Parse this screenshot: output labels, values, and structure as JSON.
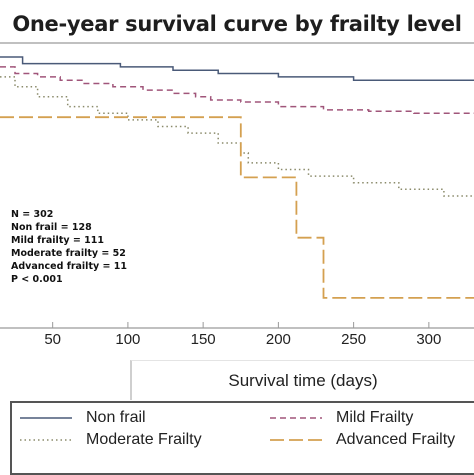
{
  "chart_data": {
    "type": "line",
    "title": "One-year survival curve by frailty level",
    "xlabel": "Survival time (days)",
    "ylabel": "",
    "xlim": [
      15,
      330
    ],
    "ylim": [
      0.595,
      1.0
    ],
    "x_ticks": [
      50,
      100,
      150,
      200,
      250,
      300
    ],
    "grid": false,
    "legend_position": "bottom",
    "annotations": [
      "N = 302",
      "Non frail = 128",
      "Mild frailty = 111",
      "Moderate frailty = 52",
      "Advanced frailty = 11",
      "P < 0.001"
    ],
    "series": [
      {
        "name": "Non frail",
        "color": "#4a5a78",
        "style": "solid",
        "x": [
          15,
          30,
          95,
          130,
          160,
          200,
          250,
          330
        ],
        "y": [
          1.0,
          0.99,
          0.985,
          0.98,
          0.975,
          0.97,
          0.965,
          0.965
        ]
      },
      {
        "name": "Mild Frailty",
        "color": "#a0557a",
        "style": "dashed",
        "x": [
          15,
          25,
          40,
          55,
          70,
          90,
          110,
          130,
          145,
          155,
          175,
          200,
          230,
          260,
          290,
          330
        ],
        "y": [
          0.985,
          0.975,
          0.97,
          0.965,
          0.96,
          0.955,
          0.95,
          0.945,
          0.94,
          0.935,
          0.932,
          0.925,
          0.92,
          0.918,
          0.915,
          0.915
        ]
      },
      {
        "name": "Moderate Frailty",
        "color": "#8a8a6a",
        "style": "dotted",
        "x": [
          15,
          25,
          40,
          60,
          80,
          100,
          120,
          140,
          160,
          175,
          180,
          200,
          220,
          250,
          280,
          310,
          330
        ],
        "y": [
          0.97,
          0.955,
          0.94,
          0.925,
          0.915,
          0.905,
          0.895,
          0.885,
          0.87,
          0.855,
          0.84,
          0.83,
          0.82,
          0.81,
          0.8,
          0.79,
          0.79
        ]
      },
      {
        "name": "Advanced Frailty",
        "color": "#d4a050",
        "style": "longdash",
        "x": [
          15,
          175,
          175,
          212,
          212,
          230,
          230,
          330
        ],
        "y": [
          0.909,
          0.909,
          0.818,
          0.818,
          0.727,
          0.727,
          0.636,
          0.636
        ]
      }
    ]
  }
}
